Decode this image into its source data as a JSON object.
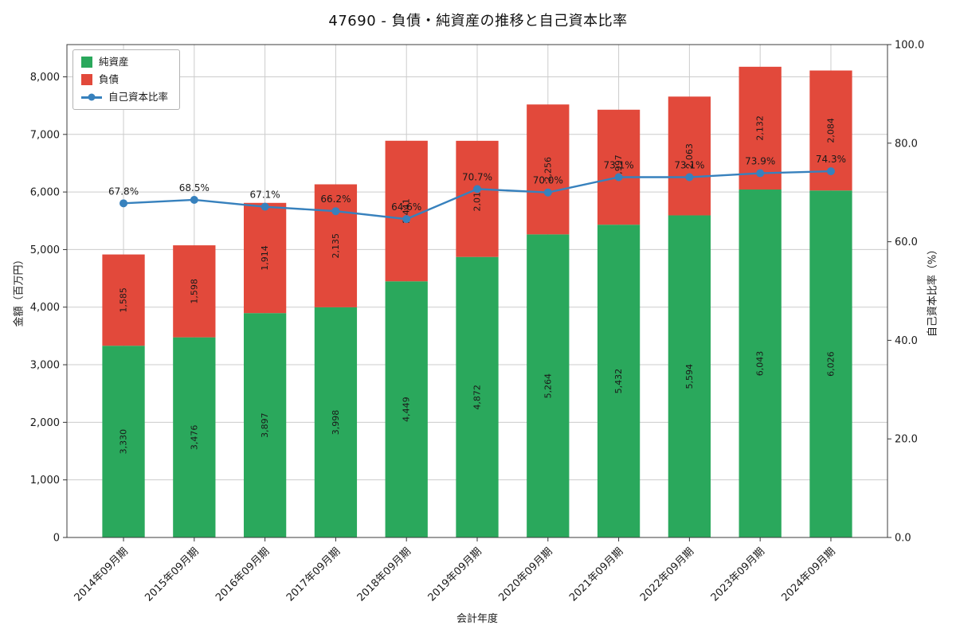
{
  "chart_data": {
    "type": "bar",
    "stacked": true,
    "title": "47690 - 負債・純資産の推移と自己資本比率",
    "xlabel": "会計年度",
    "ylabel_left": "金額（百万円）",
    "ylabel_right": "自己資本比率（%）",
    "categories": [
      "2014年09月期",
      "2015年09月期",
      "2016年09月期",
      "2017年09月期",
      "2018年09月期",
      "2019年09月期",
      "2020年09月期",
      "2021年09月期",
      "2022年09月期",
      "2023年09月期",
      "2024年09月期"
    ],
    "series": [
      {
        "key": "net-assets",
        "name": "純資産",
        "color": "#2aa85c",
        "values": [
          3330,
          3476,
          3897,
          3998,
          4449,
          4872,
          5264,
          5432,
          5594,
          6043,
          6026
        ],
        "labels": [
          "3,330",
          "3,476",
          "3,897",
          "3,998",
          "4,449",
          "4,872",
          "5,264",
          "5,432",
          "5,594",
          "6,043",
          "6,026"
        ]
      },
      {
        "key": "liabilities",
        "name": "負債",
        "color": "#e2493b",
        "values": [
          1585,
          1598,
          1914,
          2135,
          2441,
          2017,
          2256,
          1997,
          2063,
          2132,
          2084
        ],
        "labels": [
          "1,585",
          "1,598",
          "1,914",
          "2,135",
          "2,441",
          "2,017",
          "2,256",
          "1,997",
          "2,063",
          "2,132",
          "2,084"
        ]
      }
    ],
    "line_series": {
      "key": "equity-ratio",
      "name": "自己資本比率",
      "color": "#3781bd",
      "axis": "right",
      "values": [
        67.8,
        68.5,
        67.1,
        66.2,
        64.6,
        70.7,
        70.0,
        73.1,
        73.1,
        73.9,
        74.3
      ],
      "labels": [
        "67.8%",
        "68.5%",
        "67.1%",
        "66.2%",
        "64.6%",
        "70.7%",
        "70.0%",
        "73.1%",
        "73.1%",
        "73.9%",
        "74.3%"
      ]
    },
    "left_axis": {
      "min": 0,
      "max": 8560,
      "ticks": [
        0,
        1000,
        2000,
        3000,
        4000,
        5000,
        6000,
        7000,
        8000
      ],
      "tick_labels": [
        "0",
        "1,000",
        "2,000",
        "3,000",
        "4,000",
        "5,000",
        "6,000",
        "7,000",
        "8,000"
      ]
    },
    "right_axis": {
      "min": 0,
      "max": 100,
      "ticks": [
        0,
        20,
        40,
        60,
        80,
        100
      ],
      "tick_labels": [
        "0.0",
        "20.0",
        "40.0",
        "60.0",
        "80.0",
        "100.0"
      ]
    },
    "grid": true,
    "grid_color": "#cccccc",
    "legend_position": "upper-left"
  }
}
